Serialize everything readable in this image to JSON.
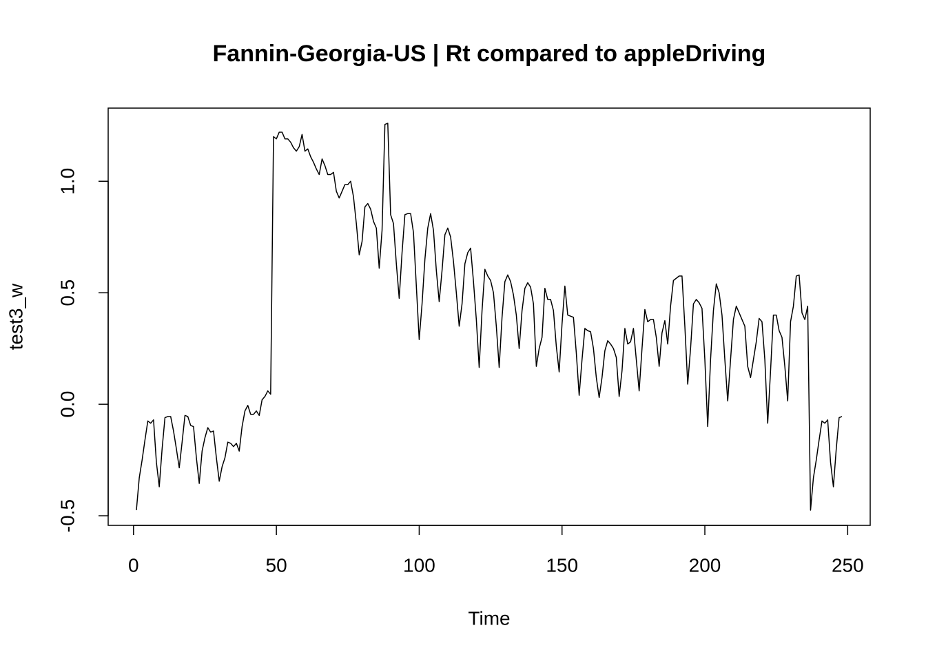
{
  "chart_data": {
    "type": "line",
    "title": "Fannin-Georgia-US | Rt compared to appleDriving",
    "xlabel": "Time",
    "ylabel": "test3_w",
    "x": [
      1,
      2,
      3,
      4,
      5,
      6,
      7,
      8,
      9,
      10,
      11,
      12,
      13,
      14,
      15,
      16,
      17,
      18,
      19,
      20,
      21,
      22,
      23,
      24,
      25,
      26,
      27,
      28,
      29,
      30,
      31,
      32,
      33,
      34,
      35,
      36,
      37,
      38,
      39,
      40,
      41,
      42,
      43,
      44,
      45,
      46,
      47,
      48,
      49,
      50,
      51,
      52,
      53,
      54,
      55,
      56,
      57,
      58,
      59,
      60,
      61,
      62,
      63,
      64,
      65,
      66,
      67,
      68,
      69,
      70,
      71,
      72,
      73,
      74,
      75,
      76,
      77,
      78,
      79,
      80,
      81,
      82,
      83,
      84,
      85,
      86,
      87,
      88,
      89,
      90,
      91,
      92,
      93,
      94,
      95,
      96,
      97,
      98,
      99,
      100,
      101,
      102,
      103,
      104,
      105,
      106,
      107,
      108,
      109,
      110,
      111,
      112,
      113,
      114,
      115,
      116,
      117,
      118,
      119,
      120,
      121,
      122,
      123,
      124,
      125,
      126,
      127,
      128,
      129,
      130,
      131,
      132,
      133,
      134,
      135,
      136,
      137,
      138,
      139,
      140,
      141,
      142,
      143,
      144,
      145,
      146,
      147,
      148,
      149,
      150,
      151,
      152,
      153,
      154,
      155,
      156,
      157,
      158,
      159,
      160,
      161,
      162,
      163,
      164,
      165,
      166,
      167,
      168,
      169,
      170,
      171,
      172,
      173,
      174,
      175,
      176,
      177,
      178,
      179,
      180,
      181,
      182,
      183,
      184,
      185,
      186,
      187,
      188,
      189,
      190,
      191,
      192,
      193,
      194,
      195,
      196,
      197,
      198,
      199,
      200,
      201,
      202,
      203,
      204,
      205,
      206,
      207,
      208,
      209,
      210,
      211,
      212,
      213,
      214,
      215,
      216,
      217,
      218,
      219,
      220,
      221,
      222,
      223,
      224,
      225,
      226,
      227,
      228,
      229,
      230,
      231,
      232,
      233,
      234,
      235,
      236,
      237,
      238,
      239,
      240,
      241,
      242,
      243,
      244,
      245,
      246,
      247,
      248
    ],
    "series": [
      {
        "name": "test3_w",
        "color": "#000000",
        "values": [
          -0.475,
          -0.33,
          -0.25,
          -0.16,
          -0.075,
          -0.085,
          -0.07,
          -0.26,
          -0.37,
          -0.2,
          -0.06,
          -0.055,
          -0.055,
          -0.12,
          -0.2,
          -0.285,
          -0.17,
          -0.05,
          -0.055,
          -0.095,
          -0.1,
          -0.24,
          -0.355,
          -0.21,
          -0.15,
          -0.105,
          -0.125,
          -0.12,
          -0.24,
          -0.345,
          -0.28,
          -0.24,
          -0.17,
          -0.175,
          -0.19,
          -0.175,
          -0.21,
          -0.1,
          -0.03,
          -0.005,
          -0.045,
          -0.045,
          -0.03,
          -0.05,
          0.02,
          0.035,
          0.06,
          0.045,
          1.2,
          1.19,
          1.22,
          1.22,
          1.19,
          1.19,
          1.175,
          1.15,
          1.135,
          1.155,
          1.21,
          1.135,
          1.145,
          1.11,
          1.085,
          1.055,
          1.03,
          1.1,
          1.07,
          1.03,
          1.03,
          1.04,
          0.955,
          0.925,
          0.955,
          0.985,
          0.985,
          1.0,
          0.93,
          0.81,
          0.67,
          0.73,
          0.885,
          0.9,
          0.875,
          0.82,
          0.79,
          0.61,
          0.78,
          1.255,
          1.26,
          0.85,
          0.81,
          0.63,
          0.475,
          0.68,
          0.85,
          0.855,
          0.855,
          0.77,
          0.53,
          0.29,
          0.45,
          0.65,
          0.79,
          0.855,
          0.78,
          0.6,
          0.46,
          0.6,
          0.76,
          0.79,
          0.75,
          0.64,
          0.5,
          0.35,
          0.45,
          0.63,
          0.68,
          0.7,
          0.55,
          0.38,
          0.165,
          0.42,
          0.605,
          0.575,
          0.555,
          0.5,
          0.35,
          0.165,
          0.39,
          0.55,
          0.58,
          0.55,
          0.49,
          0.4,
          0.25,
          0.42,
          0.52,
          0.545,
          0.525,
          0.45,
          0.17,
          0.25,
          0.3,
          0.52,
          0.47,
          0.47,
          0.42,
          0.26,
          0.145,
          0.36,
          0.53,
          0.4,
          0.395,
          0.39,
          0.23,
          0.04,
          0.2,
          0.34,
          0.33,
          0.325,
          0.25,
          0.12,
          0.03,
          0.12,
          0.24,
          0.285,
          0.27,
          0.25,
          0.21,
          0.035,
          0.15,
          0.34,
          0.27,
          0.28,
          0.34,
          0.2,
          0.06,
          0.25,
          0.425,
          0.37,
          0.38,
          0.38,
          0.3,
          0.17,
          0.32,
          0.375,
          0.27,
          0.44,
          0.555,
          0.565,
          0.575,
          0.575,
          0.35,
          0.09,
          0.25,
          0.45,
          0.47,
          0.455,
          0.43,
          0.2,
          -0.1,
          0.2,
          0.42,
          0.54,
          0.5,
          0.4,
          0.2,
          0.015,
          0.2,
          0.38,
          0.44,
          0.41,
          0.38,
          0.35,
          0.17,
          0.12,
          0.2,
          0.28,
          0.385,
          0.37,
          0.2,
          -0.085,
          0.15,
          0.4,
          0.4,
          0.33,
          0.3,
          0.17,
          0.015,
          0.37,
          0.44,
          0.575,
          0.58,
          0.41,
          0.38,
          0.44,
          -0.475,
          -0.33,
          -0.25,
          -0.16,
          -0.075,
          -0.085,
          -0.07,
          -0.26,
          -0.37,
          -0.2,
          -0.06,
          -0.055
        ]
      }
    ],
    "xlim": [
      -8.88,
      257.88
    ],
    "xticks": [
      0,
      50,
      100,
      150,
      200,
      250
    ],
    "ylim": [
      -0.543,
      1.328
    ],
    "yticks": [
      {
        "value": -0.5,
        "label": "-0.5"
      },
      {
        "value": 0,
        "label": "0.0"
      },
      {
        "value": 0.5,
        "label": "0.5"
      },
      {
        "value": 1,
        "label": "1.0"
      }
    ],
    "grid": false
  }
}
